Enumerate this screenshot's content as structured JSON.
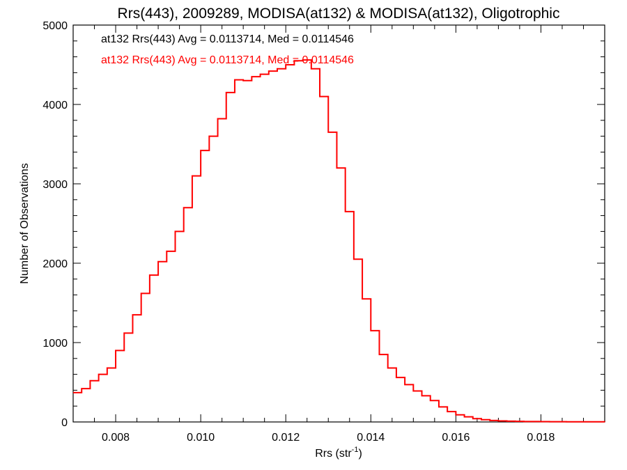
{
  "chart_data": {
    "type": "line",
    "title": "Rrs(443), 2009289, MODISA(at132) & MODISA(at132), Oligotrophic",
    "xlabel": "Rrs (str",
    "xlabel_sup": "-1",
    "xlabel_close": ")",
    "ylabel": "Number of Observations",
    "xlim": [
      0.007,
      0.0195
    ],
    "ylim": [
      0,
      5000
    ],
    "xticks": [
      0.008,
      0.01,
      0.012,
      0.014,
      0.016,
      0.018
    ],
    "xtick_labels": [
      "0.008",
      "0.010",
      "0.012",
      "0.014",
      "0.016",
      "0.018"
    ],
    "yticks": [
      0,
      1000,
      2000,
      3000,
      4000,
      5000
    ],
    "ytick_labels": [
      "0",
      "1000",
      "2000",
      "3000",
      "4000",
      "5000"
    ],
    "annotations": [
      {
        "text": "at132 Rrs(443) Avg = 0.0113714, Med = 0.0114546",
        "color": "#000000"
      },
      {
        "text": "at132 Rrs(443) Avg = 0.0113714, Med = 0.0114546",
        "color": "#ff0000"
      }
    ],
    "line_color": "#ff0000",
    "series": [
      {
        "x": [
          0.007,
          0.0072,
          0.0074,
          0.0076,
          0.0078,
          0.008,
          0.0082,
          0.0084,
          0.0086,
          0.0088,
          0.009,
          0.0092,
          0.0094,
          0.0096,
          0.0098,
          0.01,
          0.0102,
          0.0104,
          0.0106,
          0.0108,
          0.011,
          0.0112,
          0.0114,
          0.0116,
          0.0118,
          0.012,
          0.0122,
          0.0124,
          0.0126,
          0.0128,
          0.013,
          0.0132,
          0.0134,
          0.0136,
          0.0138,
          0.014,
          0.0142,
          0.0144,
          0.0146,
          0.0148,
          0.015,
          0.0152,
          0.0154,
          0.0156,
          0.0158,
          0.016,
          0.0162,
          0.0164,
          0.0166,
          0.0168,
          0.017,
          0.0172,
          0.0174,
          0.0176,
          0.0178,
          0.018,
          0.0182,
          0.0184,
          0.0186,
          0.0188,
          0.019,
          0.0192,
          0.0195
        ],
        "y": [
          370,
          420,
          520,
          600,
          680,
          900,
          1120,
          1350,
          1620,
          1850,
          2020,
          2150,
          2400,
          2700,
          3100,
          3420,
          3600,
          3820,
          4150,
          4310,
          4300,
          4350,
          4380,
          4420,
          4450,
          4500,
          4550,
          4560,
          4450,
          4100,
          3650,
          3200,
          2650,
          2050,
          1550,
          1150,
          850,
          680,
          560,
          470,
          390,
          330,
          270,
          190,
          130,
          90,
          65,
          42,
          28,
          19,
          13,
          10,
          8,
          6,
          5,
          4,
          3,
          3,
          2,
          2,
          2,
          2,
          1
        ]
      }
    ]
  }
}
